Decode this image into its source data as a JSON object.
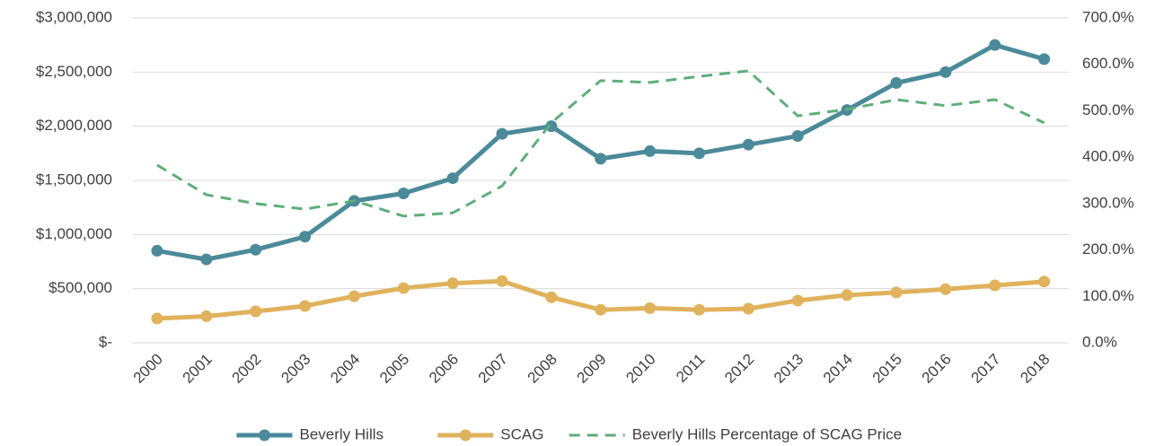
{
  "chart_data": {
    "type": "line",
    "categories": [
      "2000",
      "2001",
      "2002",
      "2003",
      "2004",
      "2005",
      "2006",
      "2007",
      "2008",
      "2009",
      "2010",
      "2011",
      "2012",
      "2013",
      "2014",
      "2015",
      "2016",
      "2017",
      "2018"
    ],
    "series": [
      {
        "name": "Beverly Hills",
        "color": "#4b8a99",
        "marker": true,
        "values": [
          850000,
          770000,
          860000,
          980000,
          1310000,
          1380000,
          1520000,
          1930000,
          2000000,
          1700000,
          1770000,
          1750000,
          1830000,
          1910000,
          2150000,
          2400000,
          2500000,
          2750000,
          2620000
        ]
      },
      {
        "name": "SCAG",
        "color": "#e0b25c",
        "marker": true,
        "values": [
          225000,
          245000,
          290000,
          340000,
          430000,
          505000,
          550000,
          570000,
          420000,
          305000,
          320000,
          305000,
          315000,
          390000,
          440000,
          465000,
          495000,
          530000,
          565000
        ]
      },
      {
        "name": "Beverly Hills Percentage of SCAG Price",
        "color": "#5fae7a",
        "dashed": true,
        "axis": "y2",
        "values": [
          383,
          319,
          300,
          288,
          306,
          273,
          280,
          338,
          474,
          565,
          561,
          574,
          586,
          489,
          503,
          524,
          511,
          524,
          474
        ]
      }
    ],
    "ylim": [
      0,
      3000000
    ],
    "yticks": [
      {
        "value": 0,
        "label": "$-"
      },
      {
        "value": 500000,
        "label": "$500,000"
      },
      {
        "value": 1000000,
        "label": "$1,000,000"
      },
      {
        "value": 1500000,
        "label": "$1,500,000"
      },
      {
        "value": 2000000,
        "label": "$2,000,000"
      },
      {
        "value": 2500000,
        "label": "$2,500,000"
      },
      {
        "value": 3000000,
        "label": "$3,000,000"
      }
    ],
    "y2lim": [
      0,
      700
    ],
    "y2ticks": [
      {
        "value": 0,
        "label": "0.0%"
      },
      {
        "value": 100,
        "label": "100.0%"
      },
      {
        "value": 200,
        "label": "200.0%"
      },
      {
        "value": 300,
        "label": "300.0%"
      },
      {
        "value": 400,
        "label": "400.0%"
      },
      {
        "value": 500,
        "label": "500.0%"
      },
      {
        "value": 600,
        "label": "600.0%"
      },
      {
        "value": 700,
        "label": "700.0%"
      }
    ],
    "grid": true,
    "legend": "bottom"
  }
}
